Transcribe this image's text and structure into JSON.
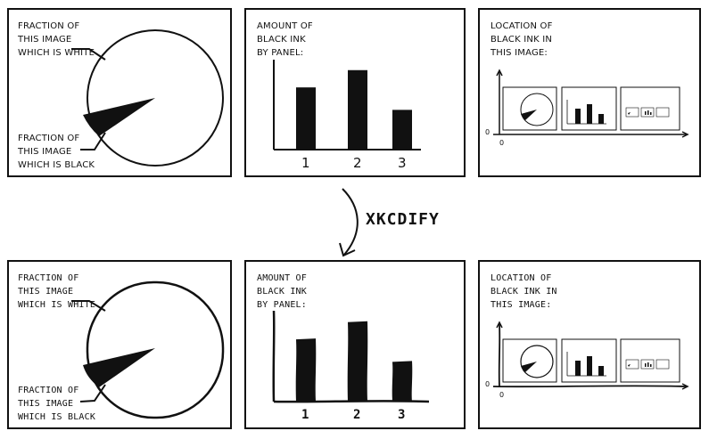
{
  "top": {
    "panel1": {
      "white_label": "FRACTION OF\nTHIS IMAGE\nWHICH IS WHITE",
      "black_label": "FRACTION OF\nTHIS IMAGE\nWHICH IS BLACK"
    },
    "panel2": {
      "title": "AMOUNT OF\nBLACK INK\nBY PANEL:",
      "ticks": [
        "1",
        "2",
        "3"
      ]
    },
    "panel3": {
      "title": "LOCATION OF\nBLACK INK IN\nTHIS IMAGE:",
      "zero_y": "0",
      "zero_x": "0"
    }
  },
  "transform_label": "XKCDIFY",
  "bottom": {
    "panel1": {
      "white_label": "FRACTION OF\nTHIS IMAGE\nWHICH IS WHITE",
      "black_label": "FRACTION OF\nTHIS IMAGE\nWHICH IS BLACK"
    },
    "panel2": {
      "title": "AMOUNT OF\nBLACK INK\nBY PANEL:",
      "ticks": [
        "1",
        "2",
        "3"
      ]
    },
    "panel3": {
      "title": "LOCATION OF\nBLACK INK IN\nTHIS IMAGE:",
      "zero_y": "0",
      "zero_x": "0"
    }
  },
  "chart_data": {
    "type": "bar",
    "categories": [
      "1",
      "2",
      "3"
    ],
    "values": [
      0.72,
      0.92,
      0.46
    ],
    "title": "AMOUNT OF BLACK INK BY PANEL:",
    "xlabel": "",
    "ylabel": "",
    "ylim": [
      0,
      1
    ]
  },
  "pie_data": {
    "type": "pie",
    "slices": [
      {
        "label": "FRACTION OF THIS IMAGE WHICH IS WHITE",
        "value": 0.9
      },
      {
        "label": "FRACTION OF THIS IMAGE WHICH IS BLACK",
        "value": 0.1
      }
    ]
  },
  "colors": {
    "ink": "#111111",
    "paper": "#ffffff"
  }
}
